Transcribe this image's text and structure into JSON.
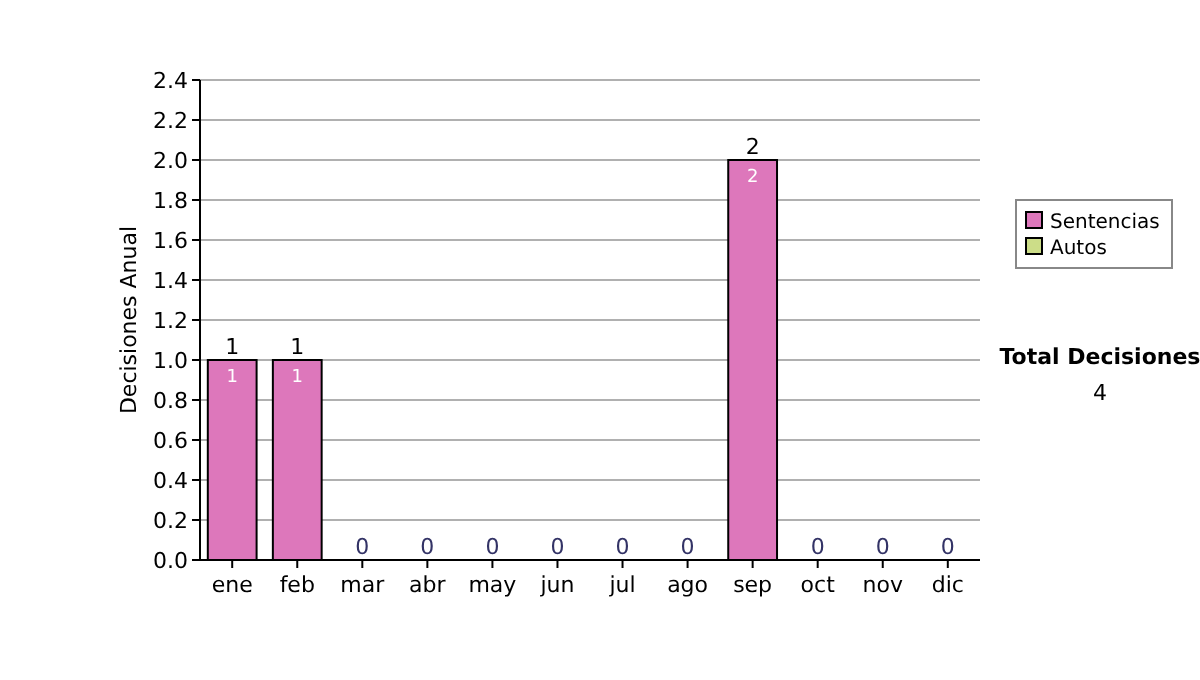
{
  "chart_data": {
    "type": "bar",
    "stacked": true,
    "ylabel": "Decisiones Anual",
    "categories": [
      "ene",
      "feb",
      "mar",
      "abr",
      "may",
      "jun",
      "jul",
      "ago",
      "sep",
      "oct",
      "nov",
      "dic"
    ],
    "series": [
      {
        "name": "Sentencias",
        "color": "#dd77bb",
        "values": [
          1,
          1,
          0,
          0,
          0,
          0,
          0,
          0,
          2,
          0,
          0,
          0
        ],
        "value_labels": [
          "1",
          "1",
          null,
          null,
          null,
          null,
          null,
          null,
          "2",
          null,
          null,
          null
        ]
      },
      {
        "name": "Autos",
        "color": "#ccdd88",
        "values": [
          0,
          0,
          0,
          0,
          0,
          0,
          0,
          0,
          0,
          0,
          0,
          0
        ]
      }
    ],
    "totals": [
      "1",
      "1",
      "0",
      "0",
      "0",
      "0",
      "0",
      "0",
      "2",
      "0",
      "0",
      "0"
    ],
    "ylim": [
      0,
      2.4
    ],
    "yticks": [
      {
        "value": 0,
        "label": "0.0"
      },
      {
        "value": 0.2,
        "label": "0.2"
      },
      {
        "value": 0.4,
        "label": "0.4"
      },
      {
        "value": 0.6,
        "label": "0.6"
      },
      {
        "value": 0.8,
        "label": "0.8"
      },
      {
        "value": 1,
        "label": "1.0"
      },
      {
        "value": 1.2,
        "label": "1.2"
      },
      {
        "value": 1.4,
        "label": "1.4"
      },
      {
        "value": 1.6,
        "label": "1.6"
      },
      {
        "value": 1.8,
        "label": "1.8"
      },
      {
        "value": 2,
        "label": "2.0"
      },
      {
        "value": 2.2,
        "label": "2.2"
      },
      {
        "value": 2.4,
        "label": "2.4"
      }
    ],
    "grid": "y",
    "legend": "right",
    "annotations": [
      "Total Decisiones",
      "4"
    ]
  }
}
